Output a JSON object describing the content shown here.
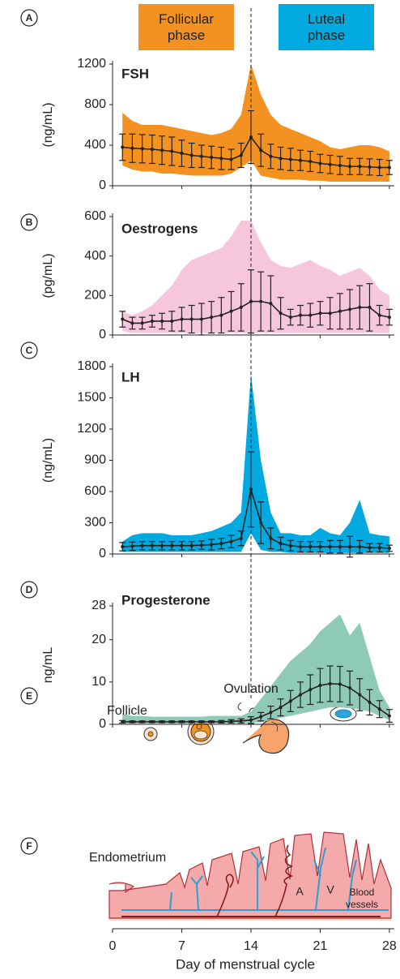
{
  "phases": [
    {
      "label": "Follicular phase",
      "color": "#f39220"
    },
    {
      "label": "Luteal phase",
      "color": "#00a9e0"
    }
  ],
  "x_axis": {
    "label": "Day of menstrual cycle",
    "xlim": [
      0,
      28.5
    ],
    "xticks": [
      0,
      7,
      14,
      21,
      28
    ],
    "ovulation_day": 14
  },
  "chart_data": [
    {
      "type": "line",
      "panel": "A",
      "title": "FSH",
      "ylabel": "(ng/mL)",
      "ylim": [
        0,
        1200
      ],
      "yticks": [
        0,
        400,
        800,
        1200
      ],
      "x": [
        1,
        2,
        3,
        4,
        5,
        6,
        7,
        8,
        9,
        10,
        11,
        12,
        13,
        14,
        15,
        16,
        17,
        18,
        19,
        20,
        21,
        22,
        23,
        24,
        25,
        26,
        27,
        28
      ],
      "values": [
        380,
        370,
        365,
        360,
        350,
        340,
        320,
        300,
        290,
        280,
        270,
        260,
        300,
        480,
        350,
        290,
        270,
        260,
        250,
        240,
        220,
        210,
        200,
        190,
        190,
        185,
        180,
        180
      ],
      "errors": [
        130,
        140,
        140,
        140,
        140,
        140,
        130,
        120,
        110,
        110,
        110,
        100,
        120,
        260,
        160,
        120,
        110,
        110,
        100,
        100,
        90,
        90,
        90,
        80,
        80,
        80,
        80,
        70
      ],
      "band": {
        "color": "#f39220",
        "high": [
          720,
          640,
          600,
          600,
          600,
          580,
          560,
          540,
          520,
          500,
          520,
          560,
          700,
          1200,
          900,
          700,
          600,
          560,
          520,
          480,
          440,
          380,
          360,
          380,
          400,
          400,
          380,
          340
        ],
        "low": [
          200,
          160,
          140,
          140,
          120,
          120,
          110,
          100,
          100,
          100,
          100,
          120,
          180,
          250,
          100,
          80,
          60,
          60,
          60,
          50,
          50,
          40,
          40,
          40,
          40,
          40,
          40,
          40
        ]
      },
      "line_color": "#222222"
    },
    {
      "type": "line",
      "panel": "B",
      "title": "Oestrogens",
      "ylabel": "(pg/mL)",
      "ylim": [
        0,
        600
      ],
      "yticks": [
        0,
        200,
        400,
        600
      ],
      "x": [
        1,
        2,
        3,
        4,
        5,
        6,
        7,
        8,
        9,
        10,
        11,
        12,
        13,
        14,
        15,
        16,
        17,
        18,
        19,
        20,
        21,
        22,
        23,
        24,
        25,
        26,
        27,
        28
      ],
      "values": [
        80,
        60,
        60,
        70,
        70,
        70,
        80,
        80,
        80,
        90,
        100,
        120,
        140,
        170,
        170,
        160,
        110,
        90,
        100,
        100,
        110,
        110,
        120,
        130,
        140,
        140,
        100,
        90
      ],
      "errors": [
        40,
        30,
        30,
        30,
        40,
        50,
        60,
        70,
        80,
        80,
        90,
        100,
        120,
        160,
        150,
        140,
        80,
        40,
        50,
        60,
        60,
        80,
        90,
        100,
        110,
        120,
        50,
        40
      ],
      "band": {
        "color": "#f6c6dc",
        "high": [
          120,
          100,
          120,
          150,
          200,
          250,
          330,
          380,
          400,
          420,
          440,
          500,
          580,
          580,
          470,
          380,
          350,
          340,
          360,
          380,
          350,
          330,
          300,
          320,
          340,
          300,
          230,
          200
        ],
        "low": [
          20,
          10,
          10,
          10,
          10,
          10,
          10,
          10,
          10,
          10,
          10,
          10,
          10,
          10,
          10,
          10,
          10,
          10,
          10,
          10,
          10,
          10,
          10,
          10,
          10,
          10,
          10,
          10
        ]
      },
      "line_color": "#222222"
    },
    {
      "type": "line",
      "panel": "C",
      "title": "LH",
      "ylabel": "(ng/mL)",
      "ylim": [
        0,
        1800
      ],
      "yticks": [
        0,
        300,
        600,
        900,
        1200,
        1500,
        1800
      ],
      "x": [
        1,
        2,
        3,
        4,
        5,
        6,
        7,
        8,
        9,
        10,
        11,
        12,
        13,
        14,
        15,
        16,
        17,
        18,
        19,
        20,
        21,
        22,
        23,
        24,
        25,
        26,
        27,
        28
      ],
      "values": [
        70,
        75,
        80,
        80,
        80,
        80,
        80,
        80,
        85,
        90,
        100,
        120,
        150,
        620,
        300,
        150,
        100,
        80,
        70,
        70,
        70,
        70,
        70,
        70,
        70,
        60,
        60,
        55
      ],
      "errors": [
        40,
        40,
        40,
        40,
        40,
        40,
        40,
        40,
        40,
        50,
        50,
        60,
        70,
        360,
        200,
        100,
        60,
        50,
        50,
        50,
        50,
        60,
        60,
        100,
        60,
        40,
        40,
        30
      ],
      "band": {
        "color": "#00a9e0",
        "high": [
          120,
          180,
          200,
          200,
          200,
          180,
          180,
          180,
          200,
          220,
          260,
          300,
          400,
          1730,
          900,
          400,
          200,
          200,
          180,
          180,
          250,
          200,
          180,
          300,
          520,
          200,
          180,
          170
        ],
        "low": [
          20,
          20,
          20,
          20,
          20,
          20,
          20,
          20,
          20,
          20,
          20,
          20,
          20,
          200,
          40,
          20,
          20,
          10,
          10,
          10,
          10,
          10,
          10,
          10,
          10,
          10,
          10,
          10
        ]
      },
      "line_color": "#222222"
    },
    {
      "type": "line",
      "panel": "D",
      "title": "Progesterone",
      "ylabel": "ng/mL",
      "ylim": [
        0,
        28
      ],
      "yticks": [
        0,
        10,
        20,
        28
      ],
      "x": [
        1,
        2,
        3,
        4,
        5,
        6,
        7,
        8,
        9,
        10,
        11,
        12,
        13,
        14,
        15,
        16,
        17,
        18,
        19,
        20,
        21,
        22,
        23,
        24,
        25,
        26,
        27,
        28
      ],
      "values": [
        0.6,
        0.6,
        0.6,
        0.6,
        0.6,
        0.6,
        0.6,
        0.6,
        0.6,
        0.6,
        0.6,
        0.7,
        0.8,
        1.0,
        1.8,
        2.8,
        4,
        5.5,
        7,
        8.2,
        9.2,
        9.6,
        9.5,
        8.6,
        7,
        5.2,
        3.6,
        2
      ],
      "errors": [
        0.3,
        0.2,
        0.2,
        0.2,
        0.2,
        0.2,
        0.2,
        0.2,
        0.2,
        0.2,
        0.3,
        0.4,
        0.5,
        0.8,
        1,
        1.5,
        2,
        2.5,
        3,
        3.5,
        4,
        4.2,
        4.2,
        4,
        3.8,
        3,
        2,
        1.5
      ],
      "band": {
        "color": "#8fcab8",
        "high": [
          2.5,
          2,
          2,
          1.8,
          1.8,
          1.8,
          1.8,
          1.8,
          1.8,
          2,
          2,
          2,
          2,
          3,
          6,
          9,
          12,
          15,
          17,
          19,
          22,
          24,
          26,
          21,
          24,
          16,
          8,
          4
        ],
        "low": [
          0.2,
          0.2,
          0.2,
          0.2,
          0.2,
          0.2,
          0.2,
          0.2,
          0.2,
          0.2,
          0.2,
          0.2,
          0.2,
          0.3,
          0.5,
          1,
          1.5,
          2,
          2.5,
          3,
          3.5,
          4,
          4,
          3.8,
          3.5,
          3,
          2,
          1
        ]
      },
      "line_color": "#222222"
    }
  ],
  "panel_e": {
    "panel": "E",
    "follicle": "Follicle",
    "ovulation": "Ovulation"
  },
  "panel_f": {
    "panel": "F",
    "endometrium": "Endometrium",
    "artery": "A",
    "vein": "V",
    "vessels": "Blood vessels"
  }
}
